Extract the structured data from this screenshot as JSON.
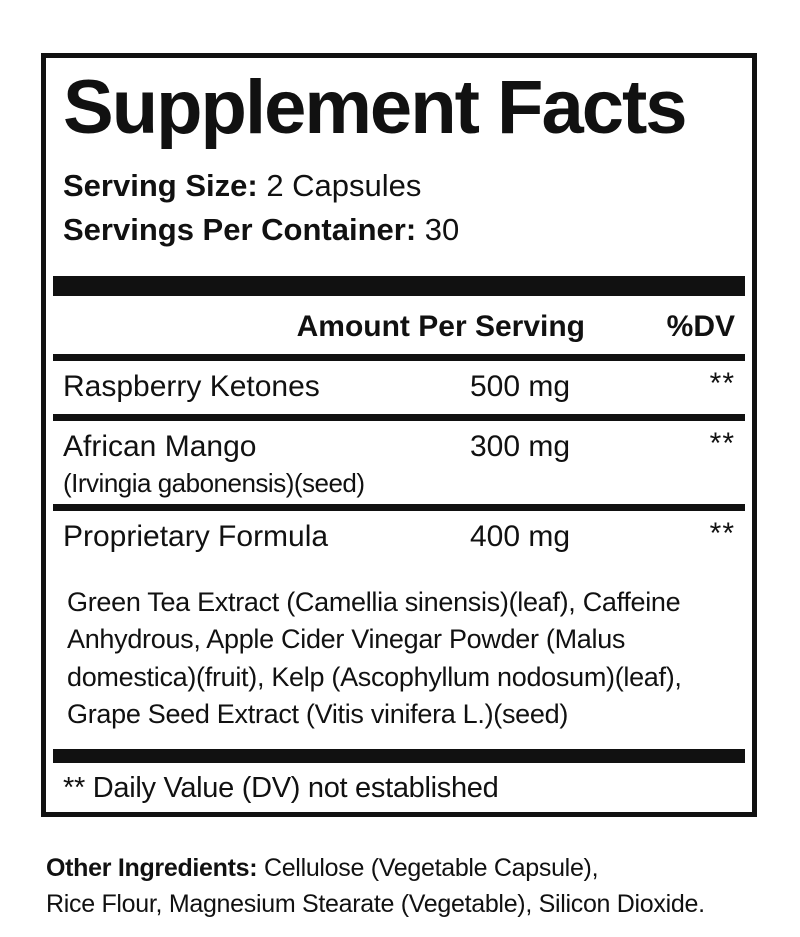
{
  "label": {
    "title": "Supplement Facts",
    "serving": {
      "size_label": "Serving Size:",
      "size_value": "2 Capsules",
      "per_container_label": "Servings Per Container:",
      "per_container_value": "30"
    },
    "table": {
      "header": {
        "amount": "Amount Per Serving",
        "dv": "%DV"
      },
      "rows": [
        {
          "name": "Raspberry Ketones",
          "amount": "500 mg",
          "dv": "**"
        },
        {
          "name": "African Mango",
          "sub": "(Irvingia gabonensis)(seed)",
          "amount": "300 mg",
          "dv": "**"
        },
        {
          "name": "Proprietary Formula",
          "amount": "400 mg",
          "dv": "**"
        }
      ],
      "proprietary_blend": "Green Tea Extract (Camellia sinensis)(leaf), Caffeine Anhydrous, Apple Cider Vinegar Powder (Malus domestica)(fruit), Kelp (Ascophyllum nodosum)(leaf), Grape Seed Extract (Vitis vinifera L.)(seed)"
    },
    "footnote": "** Daily Value (DV) not established",
    "other_ingredients": {
      "label": "Other Ingredients:",
      "line1": "Cellulose (Vegetable Capsule),",
      "line2": "Rice Flour, Magnesium Stearate (Vegetable), Silicon Dioxide."
    },
    "colors": {
      "text": "#111111",
      "background": "#ffffff"
    }
  }
}
